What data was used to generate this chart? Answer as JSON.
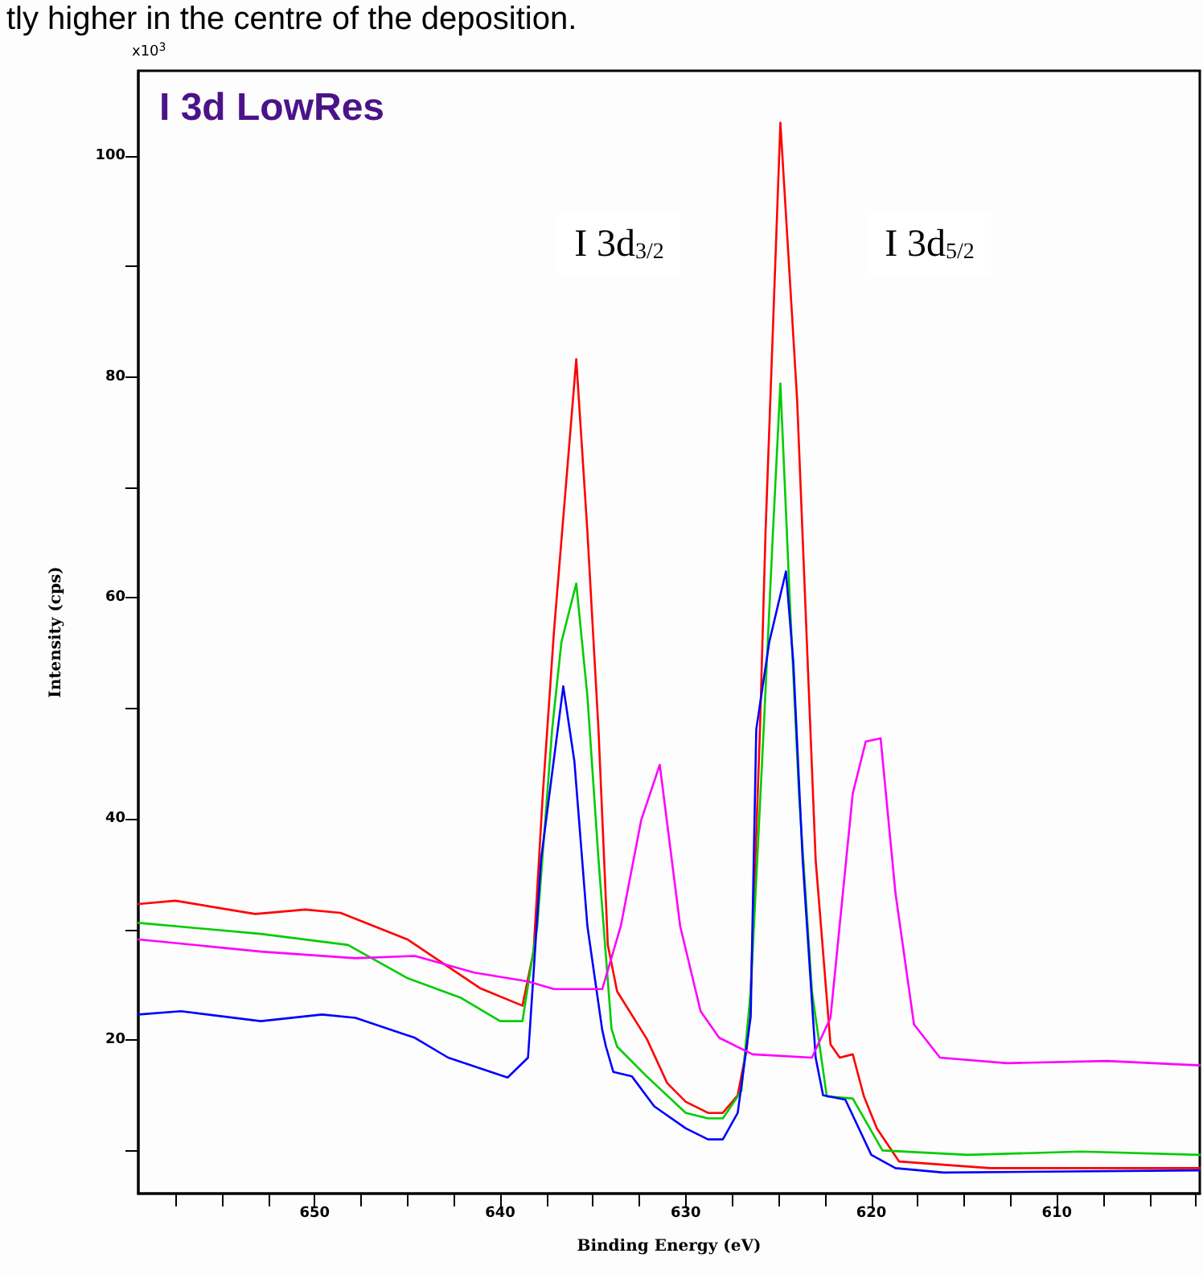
{
  "chart_data": {
    "type": "line",
    "title": "I 3d LowRes",
    "xlabel": "Binding Energy (eV)",
    "ylabel": "Intensity (cps)",
    "annotations": [
      "tly higher in the centre of the deposition.",
      "x10$^{3}$",
      "I 3d$_{3/2}$",
      "I 3d$_{5/2}$"
    ],
    "xlim": [
      659.5,
      602.3
    ],
    "ylim": [
      6.1,
      107.7
    ],
    "xticks": [
      {
        "value": 657.5,
        "label": null
      },
      {
        "value": 655,
        "label": null
      },
      {
        "value": 652.5,
        "label": null
      },
      650,
      {
        "value": 647.5,
        "label": null
      },
      {
        "value": 645,
        "label": null
      },
      {
        "value": 642.5,
        "label": null
      },
      640,
      {
        "value": 637.5,
        "label": null
      },
      {
        "value": 635,
        "label": null
      },
      {
        "value": 632.5,
        "label": null
      },
      630,
      {
        "value": 627.5,
        "label": null
      },
      {
        "value": 625,
        "label": null
      },
      {
        "value": 622.5,
        "label": null
      },
      620,
      {
        "value": 617.5,
        "label": null
      },
      {
        "value": 615,
        "label": null
      },
      {
        "value": 612.5,
        "label": null
      },
      610,
      {
        "value": 607.5,
        "label": null
      },
      {
        "value": 605,
        "label": null
      },
      {
        "value": 602.5,
        "label": null
      }
    ],
    "yticks": [
      {
        "value": 10,
        "label": null
      },
      20,
      {
        "value": 30,
        "label": null
      },
      40,
      {
        "value": 50,
        "label": null
      },
      60,
      {
        "value": 70,
        "label": null
      },
      80,
      {
        "value": 90,
        "label": null
      },
      100
    ],
    "grid": false,
    "marker": "none",
    "line_style": "solid",
    "series": [
      {
        "color": "#ff0000",
        "x": [
          659.5,
          657.5,
          653.2,
          650.5,
          648.6,
          645,
          641.1,
          638.8,
          638.2,
          637.7,
          637.1,
          635.9,
          635.3,
          634.7,
          634.2,
          633.7,
          632.1,
          631,
          630,
          628.8,
          628,
          627.2,
          626.7,
          626.5,
          626,
          625.7,
          624.9,
          624,
          623.5,
          623,
          622.2,
          621.7,
          621,
          620.4,
          619.7,
          618.5,
          613.6,
          602.3
        ],
        "values": [
          32.3,
          32.6,
          31.4,
          31.8,
          31.5,
          29.1,
          24.7,
          23.1,
          28,
          42.3,
          57,
          81.6,
          66,
          48,
          28.6,
          24.4,
          20.1,
          16.1,
          14.4,
          13.4,
          13.4,
          15,
          19.4,
          24.4,
          48.1,
          66,
          103,
          78,
          57.1,
          36.3,
          19.6,
          18.4,
          18.7,
          14.9,
          12,
          9,
          8.4,
          8.4
        ]
      },
      {
        "color": "#00cc00",
        "x": [
          659.5,
          652.9,
          648.2,
          645,
          642.1,
          640,
          638.8,
          638,
          637.2,
          636.7,
          635.9,
          635.3,
          634.7,
          634,
          633.7,
          632.1,
          630,
          628.8,
          628,
          627,
          626.5,
          625.8,
          625.3,
          624.9,
          624.4,
          623.9,
          623.2,
          622.4,
          621,
          619.4,
          614.8,
          608.7,
          602.3
        ],
        "values": [
          30.6,
          29.6,
          28.6,
          25.6,
          23.8,
          21.7,
          21.7,
          30.3,
          48.1,
          56,
          61.3,
          51.1,
          36.3,
          21,
          19.4,
          16.7,
          13.4,
          12.9,
          12.9,
          15.4,
          24.4,
          48.1,
          66,
          79.4,
          60.1,
          42.3,
          24.4,
          14.9,
          14.7,
          10,
          9.6,
          9.9,
          9.6
        ]
      },
      {
        "color": "#0000ff",
        "x": [
          659.5,
          657.2,
          652.9,
          649.6,
          647.8,
          644.6,
          642.8,
          639.6,
          638.5,
          637.8,
          636.6,
          636,
          635.3,
          634.5,
          634.3,
          633.9,
          632.9,
          631.7,
          630,
          628.8,
          628,
          627.2,
          626.5,
          626.2,
          625.5,
          624.6,
          624.2,
          623.7,
          623,
          622.6,
          621.4,
          620,
          618.7,
          616.1,
          602.3
        ],
        "values": [
          22.3,
          22.6,
          21.7,
          22.3,
          22,
          20.2,
          18.4,
          16.6,
          18.4,
          36.3,
          52,
          45.2,
          30.3,
          20.9,
          19.4,
          17.1,
          16.7,
          14,
          12,
          11,
          11,
          13.4,
          22.1,
          48.1,
          56,
          62.4,
          54.1,
          36.3,
          18.4,
          15,
          14.6,
          9.6,
          8.4,
          8,
          8.2
        ]
      },
      {
        "color": "#ff00ff",
        "x": [
          659.5,
          652.9,
          647.8,
          644.6,
          641.4,
          638.5,
          637.1,
          634.5,
          633.5,
          632.4,
          631.4,
          630.3,
          629.2,
          628.2,
          626.4,
          623.2,
          622.2,
          621,
          620.3,
          619.5,
          618.7,
          617.7,
          616.3,
          612.7,
          607.3,
          602.3
        ],
        "values": [
          29.1,
          28,
          27.4,
          27.6,
          26.1,
          25.3,
          24.6,
          24.6,
          30.3,
          39.9,
          44.9,
          30.3,
          22.6,
          20.2,
          18.7,
          18.4,
          22,
          42.3,
          47,
          47.3,
          33.3,
          21.4,
          18.4,
          17.9,
          18.1,
          17.7
        ]
      }
    ]
  }
}
